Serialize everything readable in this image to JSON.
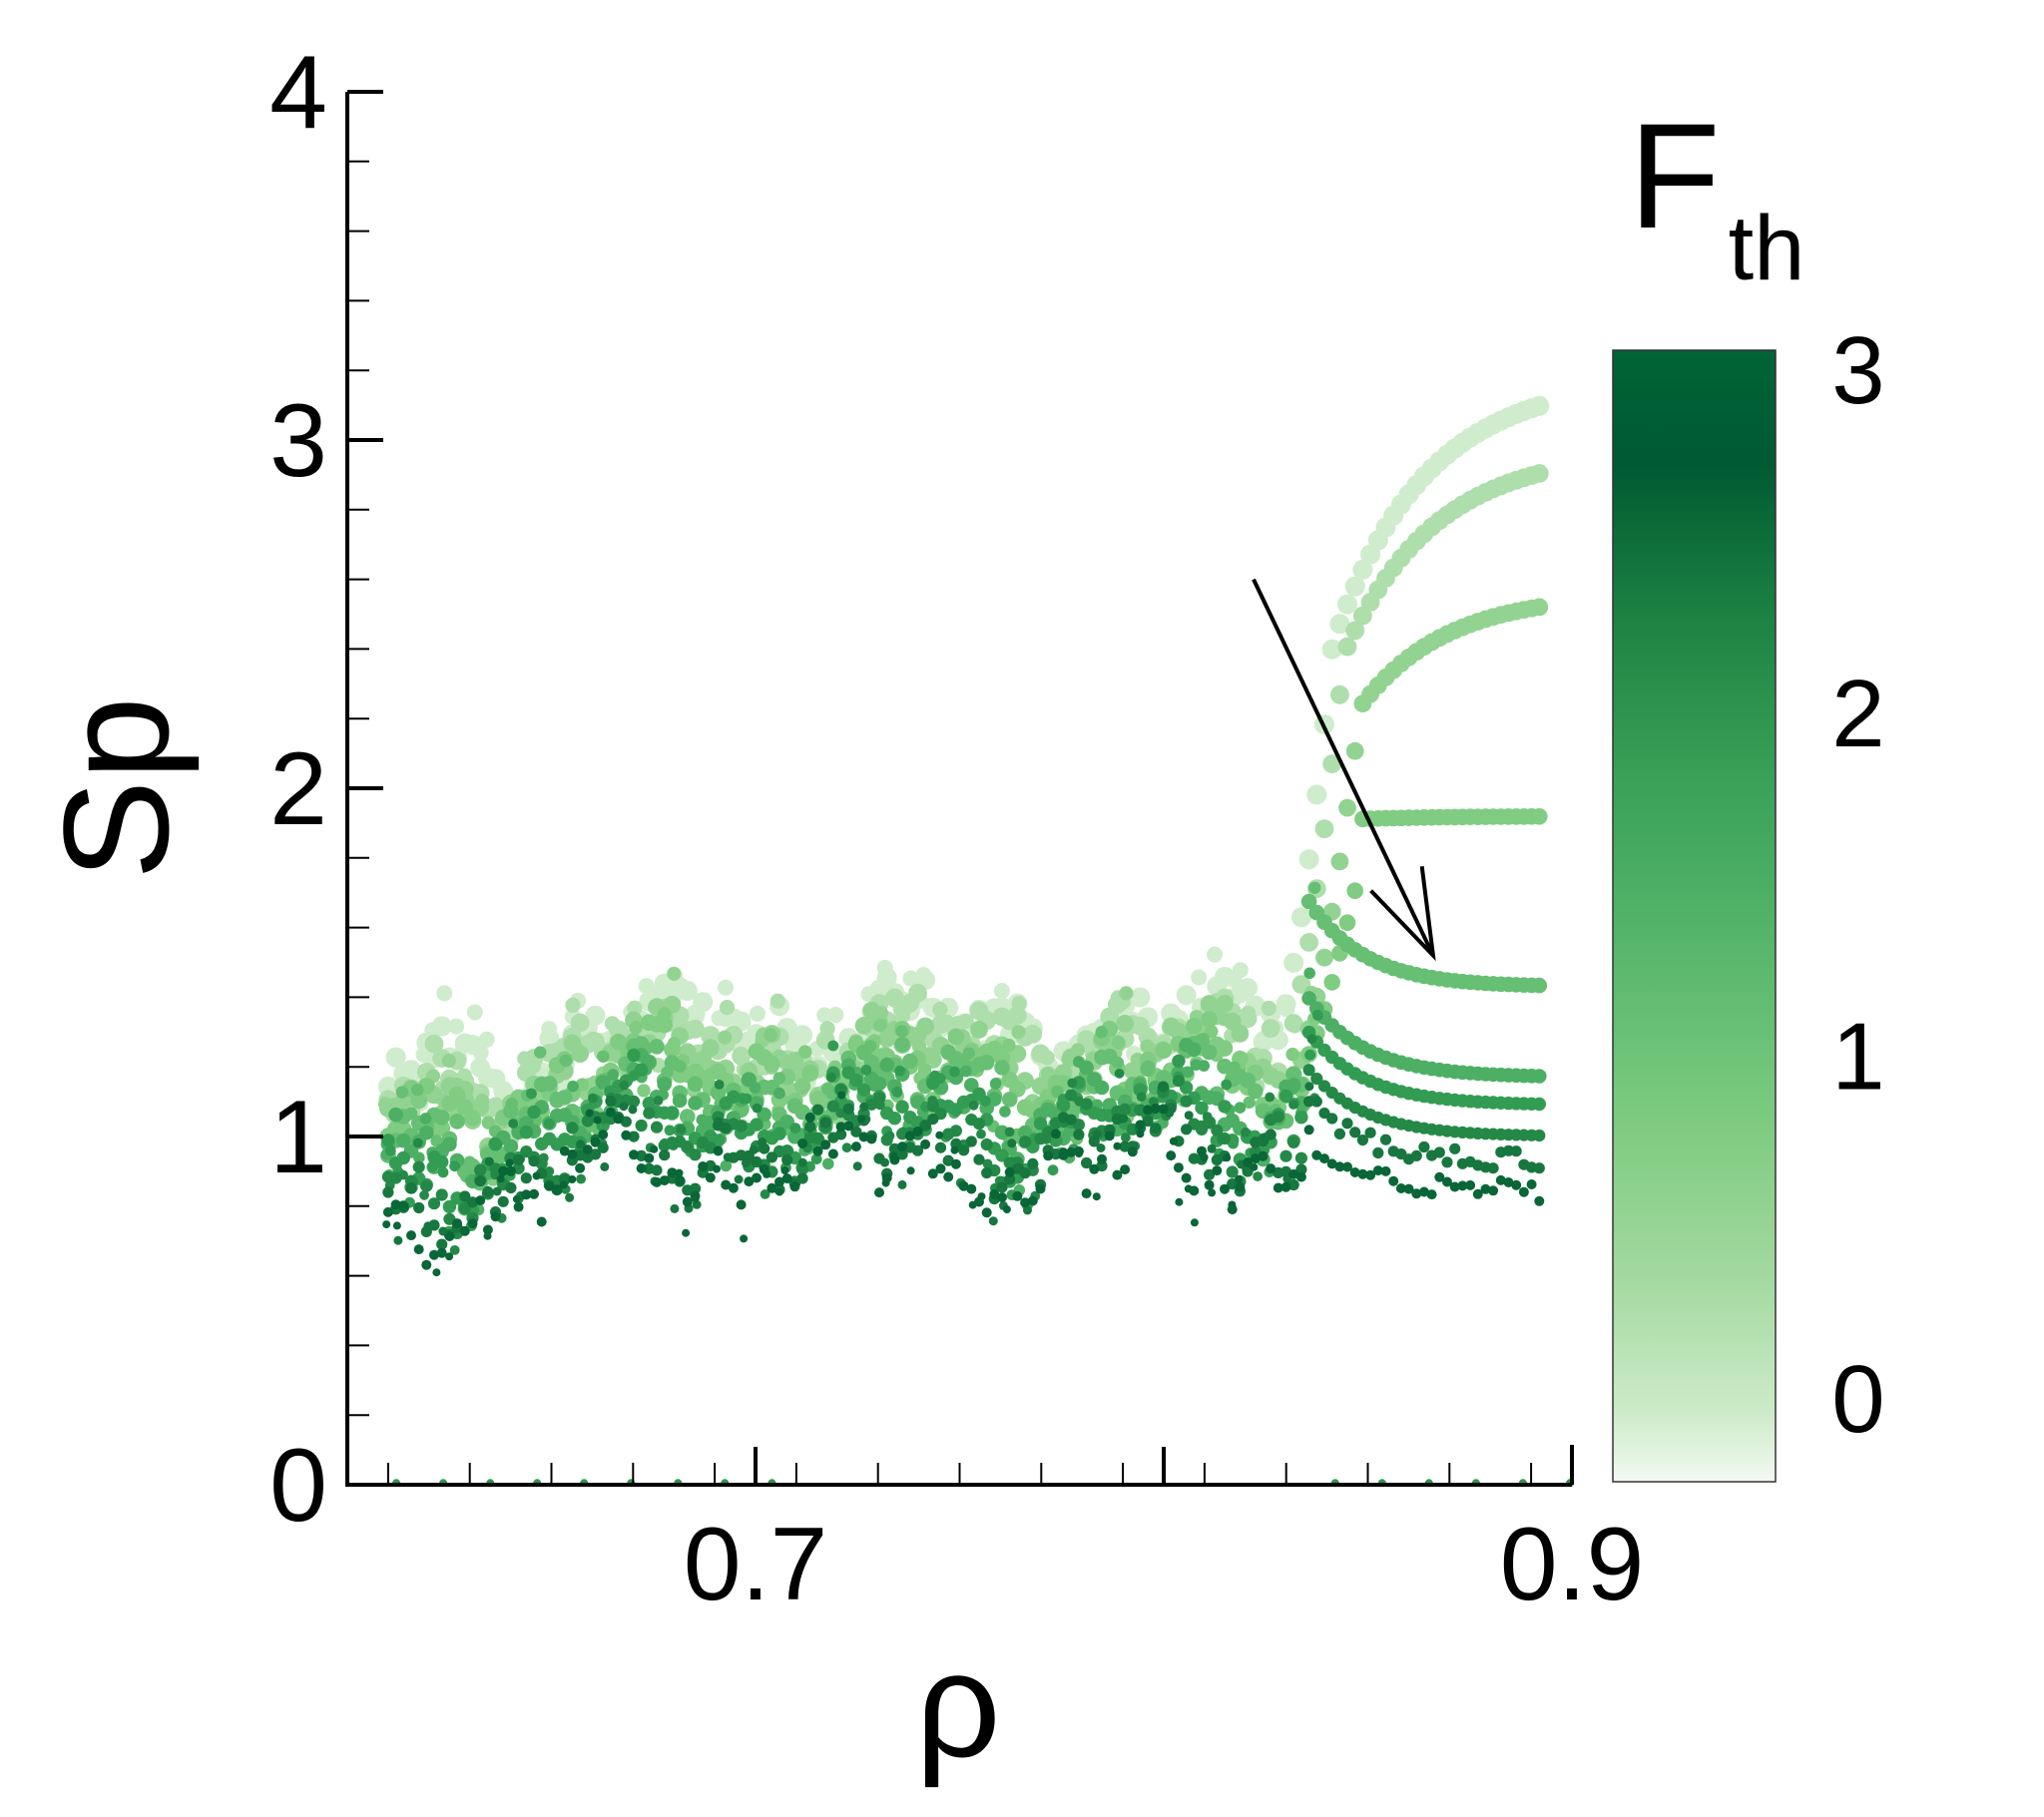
{
  "chart_data": {
    "type": "scatter",
    "title": "",
    "xlabel": "ρ",
    "ylabel": "Sp",
    "xlim": [
      0.6,
      0.9
    ],
    "ylim": [
      0,
      4
    ],
    "x_ticks": [
      {
        "value": 0.7,
        "label": "0.7"
      },
      {
        "value": 0.9,
        "label": "0.9"
      }
    ],
    "x_major_unlabeled": [
      0.8
    ],
    "y_ticks": [
      {
        "value": 0,
        "label": "0"
      },
      {
        "value": 1,
        "label": "1"
      },
      {
        "value": 2,
        "label": "2"
      },
      {
        "value": 3,
        "label": "3"
      },
      {
        "value": 4,
        "label": "4"
      }
    ],
    "grid": false,
    "colorbar": {
      "title_main": "F",
      "title_sub": "th",
      "range": [
        -0.25,
        3.05
      ],
      "ticks": [
        {
          "value": 0,
          "label": "0"
        },
        {
          "value": 1,
          "label": "1"
        },
        {
          "value": 2,
          "label": "2"
        },
        {
          "value": 3,
          "label": "3"
        }
      ],
      "colors": [
        "#f3f9f2",
        "#a3d9a0",
        "#7ccb7f",
        "#55b56a",
        "#2f9950",
        "#1b7d40",
        "#005a32",
        "#006436"
      ]
    },
    "annotation": {
      "type": "arrow",
      "from": [
        0.822,
        2.6
      ],
      "to": [
        0.866,
        1.52
      ],
      "meaning": "increasing F_th"
    },
    "series": [
      {
        "fth": 0.05,
        "transition_rho": 0.833,
        "final_sp": 3.18
      },
      {
        "fth": 0.35,
        "transition_rho": 0.835,
        "final_sp": 2.97
      },
      {
        "fth": 0.7,
        "transition_rho": 0.838,
        "final_sp": 2.56
      },
      {
        "fth": 1.0,
        "transition_rho": 0.838,
        "final_sp": 1.92
      },
      {
        "fth": 1.3,
        "transition_rho": 0.838,
        "final_sp": 1.43
      },
      {
        "fth": 1.6,
        "transition_rho": 0.838,
        "final_sp": 1.17
      },
      {
        "fth": 1.9,
        "transition_rho": 0.838,
        "final_sp": 1.09
      },
      {
        "fth": 2.2,
        "transition_rho": 0.838,
        "final_sp": 1.0
      },
      {
        "fth": 2.5,
        "transition_rho": 0.838,
        "final_sp": 0.93
      },
      {
        "fth": 2.8,
        "transition_rho": 0.838,
        "final_sp": 0.84
      }
    ],
    "x_range_data": [
      0.61,
      0.892
    ]
  }
}
